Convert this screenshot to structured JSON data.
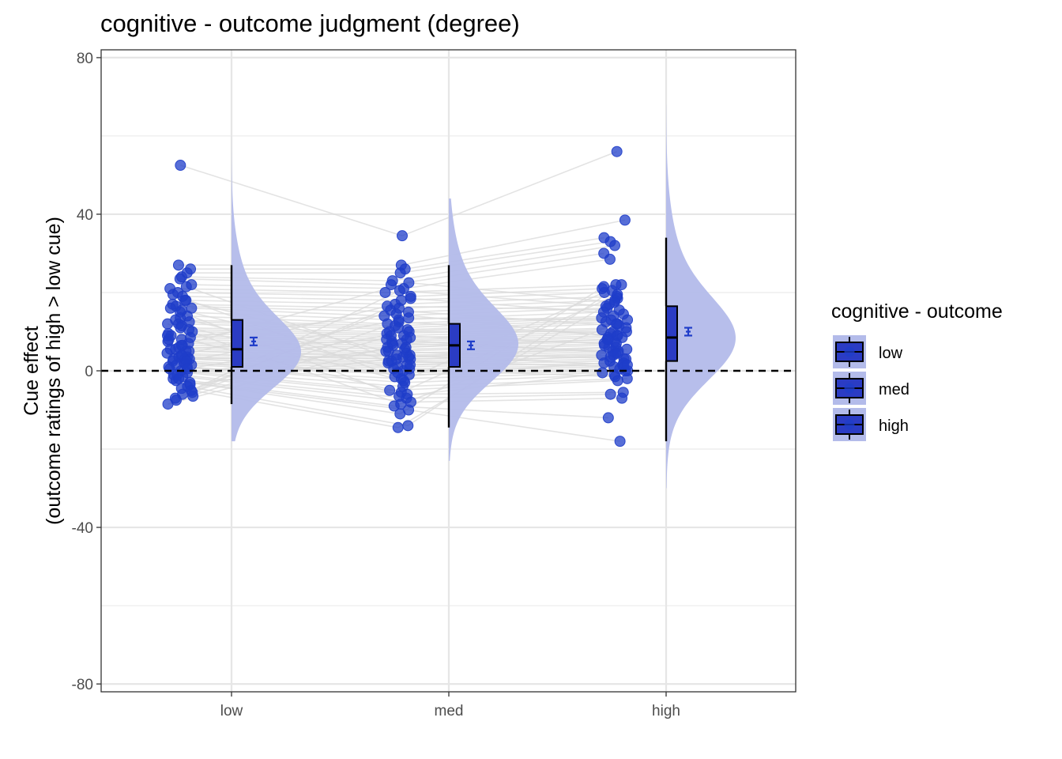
{
  "chart_data": {
    "type": "raincloud",
    "title": "cognitive  - outcome judgment (degree)",
    "ylabel_lines": [
      "Cue effect",
      "(outcome ratings of high > low cue)"
    ],
    "xlabel": "",
    "categories": [
      "low",
      "med",
      "high"
    ],
    "ylim": [
      -82,
      82
    ],
    "yticks": [
      80,
      40,
      0,
      -40,
      -80
    ],
    "ytick_labels": [
      "80",
      "40",
      "0",
      "-40",
      "-80"
    ],
    "reference_line": 0,
    "grid": true,
    "legend": {
      "title": "cognitive  - outcome",
      "placement": "right",
      "entries": [
        "low",
        "med",
        "high"
      ]
    },
    "colors": {
      "point": "#1f3dc9",
      "box_fill": "#2b3cc4",
      "cloud": "#b3bbea",
      "errorbar": "#1f3dc9",
      "connector": "#d9d9d9"
    },
    "box": [
      {
        "category": "low",
        "q1": 1,
        "median": 5.5,
        "q3": 13,
        "whisker_low": -8.5,
        "whisker_high": 27
      },
      {
        "category": "med",
        "q1": 1,
        "median": 6.5,
        "q3": 12,
        "whisker_low": -14.5,
        "whisker_high": 27
      },
      {
        "category": "high",
        "q1": 2.5,
        "median": 8.5,
        "q3": 16.5,
        "whisker_low": -18,
        "whisker_high": 34
      }
    ],
    "mean_se": [
      {
        "category": "low",
        "mean": 7.5,
        "se_low": 6.5,
        "se_high": 8.5
      },
      {
        "category": "med",
        "mean": 6.5,
        "se_low": 5.5,
        "se_high": 7.5
      },
      {
        "category": "high",
        "mean": 10,
        "se_low": 9,
        "se_high": 11
      }
    ],
    "density": [
      {
        "category": "low",
        "y_min": -18,
        "y_max": 60,
        "peak_at": 4,
        "width_sd": 8.5
      },
      {
        "category": "med",
        "y_min": -23,
        "y_max": 44,
        "peak_at": 6,
        "width_sd": 9
      },
      {
        "category": "high",
        "y_min": -30,
        "y_max": 68,
        "peak_at": 7.5,
        "width_sd": 10
      }
    ],
    "points": {
      "low": [
        52.5,
        27,
        26,
        25,
        24,
        23.5,
        22,
        21,
        20,
        19,
        18,
        17,
        16.5,
        16,
        15,
        14,
        13,
        12.5,
        12,
        11,
        10.5,
        10,
        9.5,
        9,
        8.5,
        8,
        7.5,
        7,
        6.5,
        6,
        5.5,
        5,
        5,
        4.5,
        4,
        3.5,
        3.5,
        3,
        3,
        2.5,
        2,
        2,
        1.5,
        1,
        1,
        0.5,
        0,
        -0.5,
        -1,
        -1.5,
        -2,
        -2.5,
        -3,
        -4,
        -4.5,
        -5,
        -5.5,
        -6,
        -7,
        -7.5,
        -8.5,
        18,
        15.5,
        13.5,
        11.5,
        9,
        6.5,
        4,
        2.5,
        0.5,
        -1,
        -3.5,
        21.5,
        19.5,
        16,
        12,
        8,
        5.5,
        3,
        1.5,
        -2,
        -6.5
      ],
      "med": [
        34.5,
        27,
        26,
        25,
        23,
        22,
        21,
        20,
        19,
        18,
        17,
        16,
        15,
        14,
        13,
        12,
        11.5,
        11,
        10.5,
        10,
        9.5,
        9,
        8.5,
        8,
        7.5,
        7,
        6.5,
        6,
        5.5,
        5,
        4.5,
        4,
        3.5,
        3,
        3,
        2.5,
        2,
        1.5,
        1,
        0.5,
        0,
        -0.5,
        -1,
        -2,
        -3,
        -4,
        -5,
        -6,
        -7,
        -8,
        -9,
        -10,
        -11,
        -14,
        -14.5,
        20.5,
        18.5,
        15.5,
        12.5,
        9,
        7,
        5,
        2.5,
        0.5,
        -2.5,
        -5.5,
        22.5,
        16.5,
        13.5,
        10,
        6,
        3.5,
        1.5,
        -1.5,
        -6.5,
        -8.5,
        14.5,
        8,
        4
      ],
      "high": [
        56,
        38.5,
        34,
        33,
        32,
        30,
        28.5,
        22,
        21,
        20,
        19,
        18,
        17,
        16,
        15,
        14,
        13.5,
        13,
        12.5,
        12,
        11,
        10.5,
        10,
        9.5,
        9,
        8.5,
        8,
        7.5,
        7,
        6.5,
        6,
        5.5,
        5,
        4.5,
        4,
        3.5,
        3,
        2.5,
        2,
        1.5,
        1,
        0.5,
        0,
        -0.5,
        -1,
        -2,
        -2.5,
        -5.5,
        -6,
        -7,
        -12,
        -18,
        21.5,
        20.5,
        18.5,
        16.5,
        14.5,
        11.5,
        9,
        7,
        5,
        3,
        1,
        -1.5,
        22,
        19.5,
        17.5,
        15.5,
        13,
        10,
        8,
        6,
        4,
        2,
        0,
        12,
        8.5,
        4.5,
        1.5
      ]
    }
  }
}
